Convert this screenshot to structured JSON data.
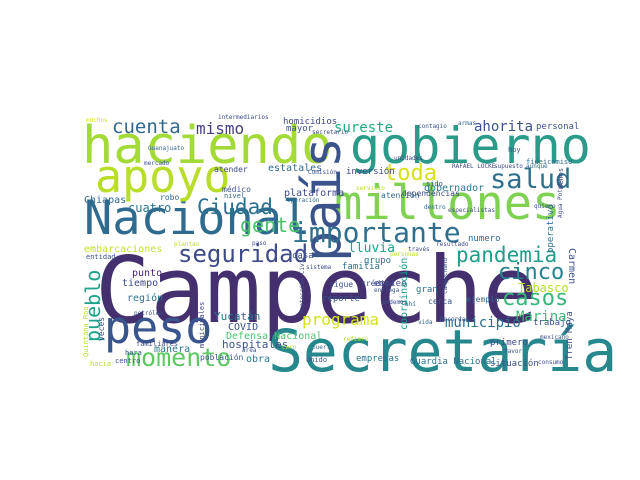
{
  "words": [
    {
      "text": "Campeche",
      "color": "#44306e"
    },
    {
      "text": "Secretaría",
      "color": "#26888d"
    },
    {
      "text": "haciendo",
      "color": "#a4da36"
    },
    {
      "text": "gobierno",
      "color": "#2a9a89"
    },
    {
      "text": "Nacional",
      "color": "#2f6b8e"
    },
    {
      "text": "apoyo",
      "color": "#b8de29"
    },
    {
      "text": "millones",
      "color": "#7ed151"
    },
    {
      "text": "país",
      "color": "#3b528b"
    },
    {
      "text": "peso",
      "color": "#3a548c"
    },
    {
      "text": "importante",
      "color": "#2e6f8e"
    },
    {
      "text": "salud",
      "color": "#2d708e"
    },
    {
      "text": "pandemia",
      "color": "#1f9e89"
    },
    {
      "text": "Ciudad",
      "color": "#2c728e"
    },
    {
      "text": "seguridad",
      "color": "#3e4a89"
    },
    {
      "text": "momento",
      "color": "#5ec962"
    },
    {
      "text": "cinco",
      "color": "#26828e"
    },
    {
      "text": "casos",
      "color": "#35b779"
    },
    {
      "text": "pueblo",
      "color": "#1fa088"
    },
    {
      "text": "toda",
      "color": "#d8e219"
    },
    {
      "text": "gente",
      "color": "#4ac16d"
    },
    {
      "text": "cuenta",
      "color": "#31688e"
    },
    {
      "text": "mismo",
      "color": "#433e85"
    },
    {
      "text": "programa",
      "color": "#d2e21b"
    },
    {
      "text": "sureste",
      "color": "#22a884"
    },
    {
      "text": "ahorita",
      "color": "#3b528b"
    },
    {
      "text": "Marina",
      "color": "#3aba76"
    },
    {
      "text": "municipio",
      "color": "#2e6e8e"
    },
    {
      "text": "Tabasco",
      "color": "#b5de2b"
    },
    {
      "text": "lluvia",
      "color": "#1fa187"
    },
    {
      "text": "Carmen",
      "color": "#3b528b"
    },
    {
      "text": "cuatro",
      "color": "#2c738e"
    },
    {
      "text": "Chiapas",
      "color": "#31688e"
    },
    {
      "text": "embarcaciones",
      "color": "#c2df23"
    },
    {
      "text": "punto",
      "color": "#482576"
    },
    {
      "text": "tiempo",
      "color": "#3e4989"
    },
    {
      "text": "región",
      "color": "#2c728e"
    },
    {
      "text": "hospitales",
      "color": "#3b528b"
    },
    {
      "text": "COVID",
      "color": "#3b528b"
    },
    {
      "text": "Yucatán",
      "color": "#2c728e"
    },
    {
      "text": "obra",
      "color": "#2a788e"
    },
    {
      "text": "manera",
      "color": "#2a788e"
    },
    {
      "text": "Defensa Nacional",
      "color": "#4ac16d"
    },
    {
      "text": "familia",
      "color": "#2c728e"
    },
    {
      "text": "casa",
      "color": "#3b528b"
    },
    {
      "text": "plataforma",
      "color": "#3e4a89"
    },
    {
      "text": "mayor",
      "color": "#3b528b"
    },
    {
      "text": "homicidios",
      "color": "#3e4989"
    },
    {
      "text": "estatales",
      "color": "#2f6b8e"
    },
    {
      "text": "inversión",
      "color": "#3e4a89"
    },
    {
      "text": "gobernador",
      "color": "#2a788e"
    },
    {
      "text": "operativo",
      "color": "#2c728e"
    },
    {
      "text": "personal",
      "color": "#3b528b"
    },
    {
      "text": "empleo",
      "color": "#3e4a89"
    },
    {
      "text": "coordinación",
      "color": "#1fa088"
    },
    {
      "text": "reporte",
      "color": "#3b528b"
    },
    {
      "text": "Guardia Nacional",
      "color": "#2c728e"
    },
    {
      "text": "situación",
      "color": "#3b528b"
    },
    {
      "text": "empresas",
      "color": "#2c728e"
    },
    {
      "text": "Tren Maya",
      "color": "#3b528b"
    },
    {
      "text": "trabajo",
      "color": "#3b528b"
    },
    {
      "text": "primero",
      "color": "#3e4a89"
    },
    {
      "text": "numero",
      "color": "#31688e"
    },
    {
      "text": "gran",
      "color": "#2c728e"
    },
    {
      "text": "ejemplo",
      "color": "#31688e"
    },
    {
      "text": "cerca",
      "color": "#3b528b"
    },
    {
      "text": "grupo",
      "color": "#2c728e"
    },
    {
      "text": "sigue",
      "color": "#3b528b"
    },
    {
      "text": "crédito",
      "color": "#3e4a89"
    },
    {
      "text": "atención",
      "color": "#31688e"
    },
    {
      "text": "dependencias",
      "color": "#3e4a89"
    },
    {
      "text": "municipales",
      "color": "#3e4a89"
    },
    {
      "text": "población",
      "color": "#3b528b"
    },
    {
      "text": "centro",
      "color": "#3b528b"
    },
    {
      "text": "hacia",
      "color": "#b5de2b"
    },
    {
      "text": "hora",
      "color": "#3b528b"
    },
    {
      "text": "veces",
      "color": "#3e4a89"
    },
    {
      "text": "Quintana Roo",
      "color": "#b5de2b"
    },
    {
      "text": "entidad",
      "color": "#3b528b"
    },
    {
      "text": "familiares",
      "color": "#3e4a89"
    },
    {
      "text": "nivel",
      "color": "#31688e"
    },
    {
      "text": "médico",
      "color": "#3b528b"
    },
    {
      "text": "atender",
      "color": "#3e4989"
    },
    {
      "text": "robo",
      "color": "#31688e"
    },
    {
      "text": "Protección Civil",
      "color": "#3e4a89"
    },
    {
      "text": "Unido",
      "color": "#3b528b"
    },
    {
      "text": "hoy",
      "color": "#3b528b"
    },
    {
      "text": "menos",
      "color": "#3e4a89"
    },
    {
      "text": "fideicomiso",
      "color": "#31688e"
    },
    {
      "text": "sido",
      "color": "#3b528b"
    },
    {
      "text": "muchos",
      "color": "#d8e219"
    },
    {
      "text": "intermediarios",
      "color": "#3e4989"
    },
    {
      "text": "Guanajuato",
      "color": "#31688e"
    },
    {
      "text": "contagio",
      "color": "#3b528b"
    },
    {
      "text": "armas",
      "color": "#31688e"
    },
    {
      "text": "secretario",
      "color": "#3e4a89"
    },
    {
      "text": "Comisión",
      "color": "#3b528b"
    },
    {
      "text": "operación",
      "color": "#31688e"
    },
    {
      "text": "resultado",
      "color": "#3e4a89"
    },
    {
      "text": "Recordar",
      "color": "#3b528b"
    },
    {
      "text": "través",
      "color": "#3e4a89"
    },
    {
      "text": "personas",
      "color": "#b5de2b"
    },
    {
      "text": "entrega",
      "color": "#3b528b"
    },
    {
      "text": "puerto",
      "color": "#31688e"
    },
    {
      "text": "favor",
      "color": "#3b528b"
    },
    {
      "text": "consumo",
      "color": "#3e4a89"
    },
    {
      "text": "área",
      "color": "#3b528b"
    },
    {
      "text": "vida",
      "color": "#31688e"
    },
    {
      "text": "quiero",
      "color": "#3b528b"
    },
    {
      "text": "supuesto",
      "color": "#3e4a89"
    },
    {
      "text": "aunque",
      "color": "#31688e"
    },
    {
      "text": "petróleo",
      "color": "#3b528b"
    },
    {
      "text": "RAFAEL LOCKE",
      "color": "#3e4a89"
    },
    {
      "text": "campechano",
      "color": "#3b528b"
    },
    {
      "text": "Agua Potable",
      "color": "#3e4a89"
    },
    {
      "text": "refiere",
      "color": "#b5de2b"
    },
    {
      "text": "ahí",
      "color": "#31688e"
    },
    {
      "text": "sistema",
      "color": "#3e4a89"
    },
    {
      "text": "plantas",
      "color": "#b5de2b"
    },
    {
      "text": "cero",
      "color": "#b5de2b"
    },
    {
      "text": "podemos",
      "color": "#3b528b"
    },
    {
      "text": "especialistas",
      "color": "#3e4a89"
    },
    {
      "text": "mercado",
      "color": "#3b528b"
    },
    {
      "text": "servicio",
      "color": "#b5de2b"
    },
    {
      "text": "unidades",
      "color": "#3e4a89"
    },
    {
      "text": "dentro",
      "color": "#31688e"
    },
    {
      "text": "mexicano",
      "color": "#3b528b"
    },
    {
      "text": "paso",
      "color": "#3e4a89"
    }
  ]
}
